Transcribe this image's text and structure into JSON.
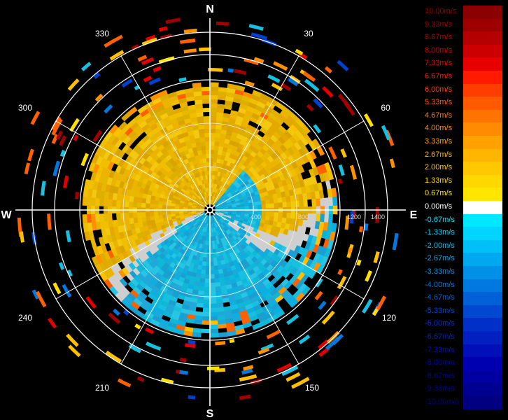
{
  "compass": {
    "north": "N",
    "south": "S",
    "east": "E",
    "west": "W"
  },
  "bearings": [
    "30",
    "60",
    "120",
    "150",
    "210",
    "240",
    "300",
    "330"
  ],
  "range_labels": [
    "400",
    "800",
    "1200",
    "1400"
  ],
  "legend": [
    {
      "label": "10.00m/s",
      "color": "#8b0000"
    },
    {
      "label": "9.33m/s",
      "color": "#9e0000"
    },
    {
      "label": "8.67m/s",
      "color": "#b40000"
    },
    {
      "label": "8.00m/s",
      "color": "#cc0000"
    },
    {
      "label": "7.33m/s",
      "color": "#e60000"
    },
    {
      "label": "6.67m/s",
      "color": "#ff1a00"
    },
    {
      "label": "6.00m/s",
      "color": "#ff3d00"
    },
    {
      "label": "5.33m/s",
      "color": "#ff5a00"
    },
    {
      "label": "4.67m/s",
      "color": "#ff7300"
    },
    {
      "label": "4.00m/s",
      "color": "#ff8c00"
    },
    {
      "label": "3.33m/s",
      "color": "#ffa200"
    },
    {
      "label": "2.67m/s",
      "color": "#ffb600"
    },
    {
      "label": "2.00m/s",
      "color": "#ffc800"
    },
    {
      "label": "1.33m/s",
      "color": "#ffd800"
    },
    {
      "label": "0.67m/s",
      "color": "#ffe600"
    },
    {
      "label": "0.00m/s",
      "color": "#ffffff"
    },
    {
      "label": "-0.67m/s",
      "color": "#00e8ff"
    },
    {
      "label": "-1.33m/s",
      "color": "#00d4ff"
    },
    {
      "label": "-2.00m/s",
      "color": "#00c0f8"
    },
    {
      "label": "-2.67m/s",
      "color": "#00a8f0"
    },
    {
      "label": "-3.33m/s",
      "color": "#0090e8"
    },
    {
      "label": "-4.00m/s",
      "color": "#0078e0"
    },
    {
      "label": "-4.67m/s",
      "color": "#0060d8"
    },
    {
      "label": "-5.33m/s",
      "color": "#0048d0"
    },
    {
      "label": "-6.00m/s",
      "color": "#0030c8"
    },
    {
      "label": "-6.67m/s",
      "color": "#0020c0"
    },
    {
      "label": "-7.33m/s",
      "color": "#0010b8"
    },
    {
      "label": "-8.00m/s",
      "color": "#0000b0"
    },
    {
      "label": "-8.67m/s",
      "color": "#0000a0"
    },
    {
      "label": "-9.33m/s",
      "color": "#000090"
    },
    {
      "label": "-10.00m/s",
      "color": "#000080"
    }
  ],
  "colors": {
    "background": "#000000",
    "grid": "#ffffff",
    "positive_field": "#ddb000",
    "negative_field": "#10b8d8",
    "zero": "#d0d0d0",
    "gap": "#000000"
  }
}
